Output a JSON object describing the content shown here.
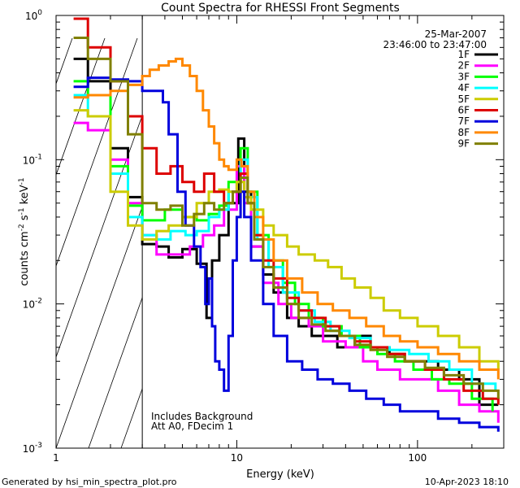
{
  "chart_data": {
    "type": "line",
    "title": "Count Spectra for RHESSI Front Segments",
    "xlabel": "Energy (keV)",
    "ylabel_parts": [
      "counts cm",
      "-2",
      " s",
      "-1",
      " keV",
      "-1"
    ],
    "x_scale": "log",
    "y_scale": "log",
    "xlim": [
      1,
      300
    ],
    "ylim": [
      0.001,
      1
    ],
    "x_tick_labels": [
      {
        "value": 1,
        "label": "1"
      },
      {
        "value": 10,
        "label": "10"
      },
      {
        "value": 100,
        "label": "100"
      }
    ],
    "y_tick_labels": [
      {
        "value": 1,
        "base": "10",
        "exp": "0"
      },
      {
        "value": 0.1,
        "base": "10",
        "exp": "-1"
      },
      {
        "value": 0.01,
        "base": "10",
        "exp": "-2"
      },
      {
        "value": 0.001,
        "base": "10",
        "exp": "-3"
      }
    ],
    "date": "25-Mar-2007",
    "time_range": "23:46:00 to 23:47:00",
    "hatched_below_keV": 3,
    "annotations": [
      "Includes Background",
      "Att A0, FDecim 1"
    ],
    "series": [
      {
        "name": "1F",
        "color": "#000000",
        "points": [
          [
            1.25,
            0.5
          ],
          [
            1.5,
            0.35
          ],
          [
            2,
            0.12
          ],
          [
            2.5,
            0.055
          ],
          [
            3,
            0.026
          ],
          [
            3.6,
            0.025
          ],
          [
            4.2,
            0.021
          ],
          [
            5,
            0.024
          ],
          [
            6,
            0.019
          ],
          [
            6.8,
            0.008
          ],
          [
            7.3,
            0.02
          ],
          [
            8,
            0.03
          ],
          [
            9,
            0.05
          ],
          [
            10.2,
            0.14
          ],
          [
            11,
            0.06
          ],
          [
            12,
            0.025
          ],
          [
            14,
            0.016
          ],
          [
            16,
            0.012
          ],
          [
            19,
            0.008
          ],
          [
            22,
            0.007
          ],
          [
            26,
            0.006
          ],
          [
            30,
            0.006
          ],
          [
            36,
            0.005
          ],
          [
            45,
            0.006
          ],
          [
            55,
            0.005
          ],
          [
            70,
            0.0045
          ],
          [
            85,
            0.004
          ],
          [
            100,
            0.004
          ],
          [
            130,
            0.0035
          ],
          [
            170,
            0.003
          ],
          [
            220,
            0.002
          ],
          [
            280,
            0.002
          ]
        ]
      },
      {
        "name": "2F",
        "color": "#ff00ff",
        "points": [
          [
            1.25,
            0.18
          ],
          [
            1.5,
            0.16
          ],
          [
            2,
            0.1
          ],
          [
            2.5,
            0.05
          ],
          [
            3,
            0.03
          ],
          [
            3.6,
            0.022
          ],
          [
            4.5,
            0.022
          ],
          [
            5.5,
            0.025
          ],
          [
            6.5,
            0.03
          ],
          [
            7.5,
            0.035
          ],
          [
            8.5,
            0.045
          ],
          [
            10,
            0.09
          ],
          [
            11,
            0.05
          ],
          [
            12,
            0.025
          ],
          [
            14,
            0.014
          ],
          [
            17,
            0.01
          ],
          [
            20,
            0.008
          ],
          [
            25,
            0.007
          ],
          [
            30,
            0.0055
          ],
          [
            40,
            0.005
          ],
          [
            50,
            0.004
          ],
          [
            60,
            0.0035
          ],
          [
            80,
            0.003
          ],
          [
            100,
            0.003
          ],
          [
            130,
            0.0025
          ],
          [
            170,
            0.002
          ],
          [
            220,
            0.0018
          ],
          [
            280,
            0.0015
          ]
        ]
      },
      {
        "name": "3F",
        "color": "#00ff00",
        "points": [
          [
            1.25,
            0.35
          ],
          [
            1.5,
            0.28
          ],
          [
            2,
            0.09
          ],
          [
            2.5,
            0.048
          ],
          [
            3,
            0.038
          ],
          [
            4,
            0.045
          ],
          [
            5,
            0.04
          ],
          [
            6,
            0.038
          ],
          [
            7,
            0.042
          ],
          [
            8,
            0.048
          ],
          [
            9,
            0.07
          ],
          [
            10.5,
            0.12
          ],
          [
            11.5,
            0.06
          ],
          [
            13,
            0.03
          ],
          [
            15,
            0.02
          ],
          [
            18,
            0.014
          ],
          [
            21,
            0.01
          ],
          [
            25,
            0.008
          ],
          [
            30,
            0.007
          ],
          [
            38,
            0.006
          ],
          [
            48,
            0.005
          ],
          [
            60,
            0.0045
          ],
          [
            75,
            0.004
          ],
          [
            95,
            0.0035
          ],
          [
            120,
            0.003
          ],
          [
            150,
            0.0028
          ],
          [
            200,
            0.0022
          ],
          [
            260,
            0.0018
          ]
        ]
      },
      {
        "name": "4F",
        "color": "#00ffff",
        "points": [
          [
            1.25,
            0.28
          ],
          [
            1.5,
            0.2
          ],
          [
            2,
            0.08
          ],
          [
            2.5,
            0.04
          ],
          [
            3,
            0.03
          ],
          [
            3.6,
            0.028
          ],
          [
            4.3,
            0.032
          ],
          [
            5.2,
            0.03
          ],
          [
            6,
            0.032
          ],
          [
            7,
            0.04
          ],
          [
            8,
            0.045
          ],
          [
            9,
            0.06
          ],
          [
            10.5,
            0.1
          ],
          [
            11.5,
            0.055
          ],
          [
            13,
            0.028
          ],
          [
            15,
            0.018
          ],
          [
            18,
            0.012
          ],
          [
            22,
            0.009
          ],
          [
            27,
            0.0075
          ],
          [
            33,
            0.0065
          ],
          [
            42,
            0.0058
          ],
          [
            55,
            0.005
          ],
          [
            70,
            0.0048
          ],
          [
            90,
            0.0045
          ],
          [
            115,
            0.004
          ],
          [
            150,
            0.0035
          ],
          [
            200,
            0.0028
          ],
          [
            270,
            0.0025
          ]
        ]
      },
      {
        "name": "5F",
        "color": "#cccc00",
        "points": [
          [
            1.25,
            0.22
          ],
          [
            1.5,
            0.2
          ],
          [
            2,
            0.06
          ],
          [
            2.5,
            0.035
          ],
          [
            3,
            0.028
          ],
          [
            3.6,
            0.032
          ],
          [
            4.2,
            0.035
          ],
          [
            5,
            0.04
          ],
          [
            6,
            0.05
          ],
          [
            7,
            0.06
          ],
          [
            8,
            0.062
          ],
          [
            9,
            0.06
          ],
          [
            10,
            0.07
          ],
          [
            11,
            0.055
          ],
          [
            12,
            0.045
          ],
          [
            14,
            0.035
          ],
          [
            16,
            0.03
          ],
          [
            19,
            0.025
          ],
          [
            22,
            0.022
          ],
          [
            27,
            0.02
          ],
          [
            32,
            0.018
          ],
          [
            38,
            0.015
          ],
          [
            45,
            0.013
          ],
          [
            55,
            0.011
          ],
          [
            65,
            0.009
          ],
          [
            80,
            0.008
          ],
          [
            100,
            0.007
          ],
          [
            130,
            0.006
          ],
          [
            170,
            0.005
          ],
          [
            220,
            0.004
          ],
          [
            280,
            0.0035
          ]
        ]
      },
      {
        "name": "6F",
        "color": "#dd0000",
        "points": [
          [
            1.25,
            0.95
          ],
          [
            1.5,
            0.6
          ],
          [
            2,
            0.35
          ],
          [
            2.5,
            0.2
          ],
          [
            3,
            0.12
          ],
          [
            3.6,
            0.08
          ],
          [
            4.3,
            0.09
          ],
          [
            5,
            0.07
          ],
          [
            5.8,
            0.06
          ],
          [
            6.6,
            0.08
          ],
          [
            7.5,
            0.06
          ],
          [
            8.5,
            0.05
          ],
          [
            9.5,
            0.06
          ],
          [
            10.5,
            0.08
          ],
          [
            11.5,
            0.05
          ],
          [
            12.5,
            0.03
          ],
          [
            14,
            0.02
          ],
          [
            16,
            0.015
          ],
          [
            19,
            0.011
          ],
          [
            22,
            0.009
          ],
          [
            26,
            0.008
          ],
          [
            31,
            0.007
          ],
          [
            37,
            0.006
          ],
          [
            45,
            0.0055
          ],
          [
            55,
            0.005
          ],
          [
            68,
            0.0045
          ],
          [
            85,
            0.004
          ],
          [
            110,
            0.0035
          ],
          [
            140,
            0.003
          ],
          [
            180,
            0.0025
          ],
          [
            230,
            0.0022
          ],
          [
            280,
            0.002
          ]
        ]
      },
      {
        "name": "7F",
        "color": "#0000dd",
        "points": [
          [
            1.25,
            0.32
          ],
          [
            1.5,
            0.37
          ],
          [
            2,
            0.36
          ],
          [
            2.5,
            0.35
          ],
          [
            3,
            0.3
          ],
          [
            3.5,
            0.3
          ],
          [
            3.9,
            0.25
          ],
          [
            4.2,
            0.15
          ],
          [
            4.7,
            0.06
          ],
          [
            5.2,
            0.035
          ],
          [
            5.8,
            0.025
          ],
          [
            6.3,
            0.018
          ],
          [
            6.7,
            0.01
          ],
          [
            7,
            0.015
          ],
          [
            7.3,
            0.007
          ],
          [
            7.6,
            0.004
          ],
          [
            8,
            0.0035
          ],
          [
            8.5,
            0.0025
          ],
          [
            9,
            0.006
          ],
          [
            9.5,
            0.02
          ],
          [
            10,
            0.04
          ],
          [
            10.5,
            0.06
          ],
          [
            11,
            0.04
          ],
          [
            12,
            0.02
          ],
          [
            14,
            0.01
          ],
          [
            16,
            0.006
          ],
          [
            19,
            0.004
          ],
          [
            23,
            0.0035
          ],
          [
            28,
            0.003
          ],
          [
            34,
            0.0028
          ],
          [
            42,
            0.0025
          ],
          [
            52,
            0.0022
          ],
          [
            65,
            0.002
          ],
          [
            80,
            0.0018
          ],
          [
            100,
            0.0018
          ],
          [
            130,
            0.0016
          ],
          [
            170,
            0.0015
          ],
          [
            220,
            0.0014
          ],
          [
            280,
            0.0013
          ]
        ]
      },
      {
        "name": "8F",
        "color": "#ff8800",
        "points": [
          [
            1.25,
            0.27
          ],
          [
            1.5,
            0.28
          ],
          [
            2,
            0.3
          ],
          [
            2.5,
            0.33
          ],
          [
            3,
            0.38
          ],
          [
            3.3,
            0.42
          ],
          [
            3.7,
            0.45
          ],
          [
            4.2,
            0.48
          ],
          [
            4.6,
            0.5
          ],
          [
            5,
            0.45
          ],
          [
            5.5,
            0.38
          ],
          [
            6,
            0.3
          ],
          [
            6.5,
            0.22
          ],
          [
            7,
            0.17
          ],
          [
            7.5,
            0.13
          ],
          [
            8,
            0.1
          ],
          [
            8.5,
            0.09
          ],
          [
            9,
            0.085
          ],
          [
            10,
            0.1
          ],
          [
            10.6,
            0.09
          ],
          [
            11.5,
            0.06
          ],
          [
            12.5,
            0.04
          ],
          [
            14,
            0.028
          ],
          [
            16,
            0.02
          ],
          [
            19,
            0.015
          ],
          [
            23,
            0.012
          ],
          [
            28,
            0.01
          ],
          [
            34,
            0.009
          ],
          [
            42,
            0.008
          ],
          [
            52,
            0.007
          ],
          [
            65,
            0.006
          ],
          [
            80,
            0.0055
          ],
          [
            100,
            0.005
          ],
          [
            130,
            0.0045
          ],
          [
            170,
            0.004
          ],
          [
            220,
            0.0035
          ],
          [
            280,
            0.003
          ]
        ]
      },
      {
        "name": "9F",
        "color": "#808000",
        "points": [
          [
            1.25,
            0.7
          ],
          [
            1.5,
            0.5
          ],
          [
            2,
            0.35
          ],
          [
            2.5,
            0.15
          ],
          [
            3,
            0.05
          ],
          [
            3.6,
            0.045
          ],
          [
            4.3,
            0.048
          ],
          [
            5,
            0.035
          ],
          [
            5.8,
            0.042
          ],
          [
            6.6,
            0.05
          ],
          [
            7.5,
            0.045
          ],
          [
            8.5,
            0.05
          ],
          [
            9.5,
            0.06
          ],
          [
            10.5,
            0.075
          ],
          [
            11.5,
            0.05
          ],
          [
            12.5,
            0.028
          ],
          [
            14,
            0.018
          ],
          [
            16,
            0.013
          ],
          [
            19,
            0.01
          ],
          [
            22,
            0.008
          ],
          [
            26,
            0.0072
          ],
          [
            31,
            0.0065
          ],
          [
            37,
            0.006
          ],
          [
            45,
            0.0052
          ],
          [
            55,
            0.0048
          ],
          [
            68,
            0.0043
          ],
          [
            85,
            0.004
          ],
          [
            110,
            0.0036
          ],
          [
            140,
            0.0032
          ],
          [
            180,
            0.0028
          ],
          [
            230,
            0.0025
          ],
          [
            280,
            0.0022
          ]
        ]
      }
    ]
  },
  "footer": {
    "generated_by": "Generated by hsi_min_spectra_plot.pro",
    "timestamp": "10-Apr-2023 18:10"
  }
}
